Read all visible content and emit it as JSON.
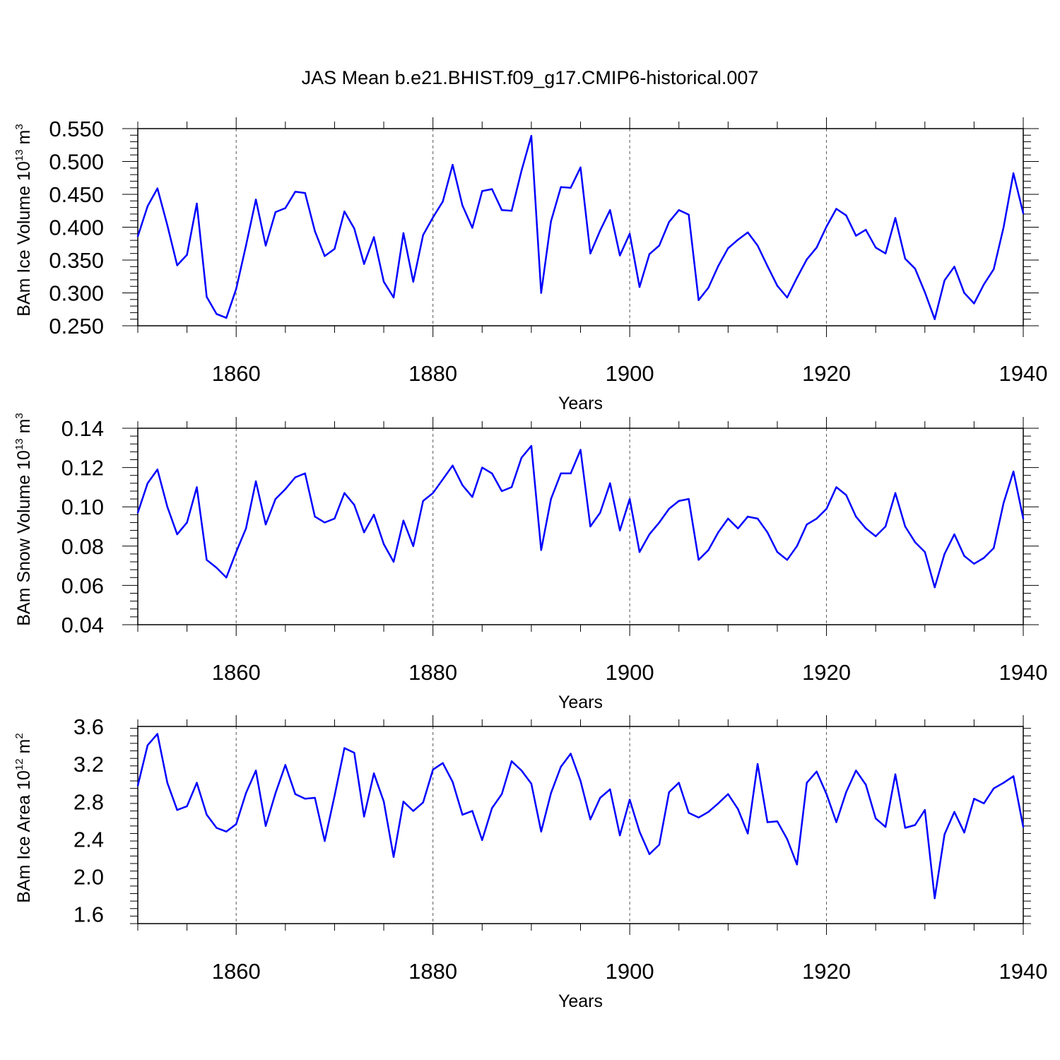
{
  "title": "JAS Mean b.e21.BHIST.f09_g17.CMIP6-historical.007",
  "chart_data": [
    {
      "type": "line",
      "title": "",
      "xlabel": "Years",
      "ylabel": "BAm Ice Volume 10",
      "ylabel_exp": "13",
      "ylabel_unit": " m",
      "ylabel_unit_exp": "3",
      "xlim": [
        1850,
        1940
      ],
      "ylim": [
        0.25,
        0.55
      ],
      "xticks": [
        "1860",
        "1880",
        "1900",
        "1920",
        "1940"
      ],
      "yticks": [
        "0.250",
        "0.300",
        "0.350",
        "0.400",
        "0.450",
        "0.500",
        "0.550"
      ],
      "grid_x": [
        1860,
        1880,
        1900,
        1920
      ],
      "line_color": "#0000ff",
      "x_start": 1850,
      "values": [
        0.386,
        0.432,
        0.459,
        0.403,
        0.342,
        0.358,
        0.436,
        0.294,
        0.268,
        0.262,
        0.306,
        0.372,
        0.442,
        0.372,
        0.423,
        0.429,
        0.454,
        0.452,
        0.394,
        0.356,
        0.367,
        0.424,
        0.398,
        0.344,
        0.385,
        0.317,
        0.293,
        0.391,
        0.317,
        0.388,
        0.415,
        0.439,
        0.495,
        0.433,
        0.399,
        0.455,
        0.458,
        0.426,
        0.425,
        0.486,
        0.539,
        0.3,
        0.409,
        0.461,
        0.46,
        0.491,
        0.36,
        0.395,
        0.426,
        0.357,
        0.39,
        0.309,
        0.359,
        0.372,
        0.408,
        0.426,
        0.419,
        0.289,
        0.308,
        0.341,
        0.368,
        0.381,
        0.392,
        0.372,
        0.341,
        0.311,
        0.293,
        0.323,
        0.351,
        0.369,
        0.401,
        0.428,
        0.418,
        0.387,
        0.396,
        0.369,
        0.36,
        0.414,
        0.352,
        0.337,
        0.301,
        0.26,
        0.319,
        0.34,
        0.3,
        0.284,
        0.313,
        0.336,
        0.4,
        0.482,
        0.421
      ]
    },
    {
      "type": "line",
      "title": "",
      "xlabel": "Years",
      "ylabel": "BAm Snow Volume 10",
      "ylabel_exp": "13",
      "ylabel_unit": " m",
      "ylabel_unit_exp": "3",
      "xlim": [
        1850,
        1940
      ],
      "ylim": [
        0.04,
        0.14
      ],
      "xticks": [
        "1860",
        "1880",
        "1900",
        "1920",
        "1940"
      ],
      "yticks": [
        "0.04",
        "0.06",
        "0.08",
        "0.10",
        "0.12",
        "0.14"
      ],
      "grid_x": [
        1860,
        1880,
        1900,
        1920
      ],
      "line_color": "#0000ff",
      "x_start": 1850,
      "values": [
        0.097,
        0.112,
        0.119,
        0.1,
        0.086,
        0.092,
        0.11,
        0.073,
        0.069,
        0.064,
        0.077,
        0.089,
        0.113,
        0.091,
        0.104,
        0.109,
        0.115,
        0.117,
        0.095,
        0.092,
        0.094,
        0.107,
        0.101,
        0.087,
        0.096,
        0.081,
        0.072,
        0.093,
        0.08,
        0.103,
        0.107,
        0.114,
        0.121,
        0.111,
        0.105,
        0.12,
        0.117,
        0.108,
        0.11,
        0.125,
        0.131,
        0.078,
        0.104,
        0.117,
        0.117,
        0.129,
        0.09,
        0.097,
        0.112,
        0.088,
        0.104,
        0.077,
        0.086,
        0.092,
        0.099,
        0.103,
        0.104,
        0.073,
        0.078,
        0.087,
        0.094,
        0.089,
        0.095,
        0.094,
        0.087,
        0.077,
        0.073,
        0.08,
        0.091,
        0.094,
        0.099,
        0.11,
        0.106,
        0.095,
        0.089,
        0.085,
        0.09,
        0.107,
        0.09,
        0.082,
        0.077,
        0.059,
        0.076,
        0.086,
        0.075,
        0.071,
        0.074,
        0.079,
        0.102,
        0.118,
        0.094
      ]
    },
    {
      "type": "line",
      "title": "",
      "xlabel": "Years",
      "ylabel": "BAm Ice Area 10",
      "ylabel_exp": "12",
      "ylabel_unit": " m",
      "ylabel_unit_exp": "2",
      "xlim": [
        1850,
        1940
      ],
      "ylim": [
        1.5,
        3.6
      ],
      "xticks": [
        "1860",
        "1880",
        "1900",
        "1920",
        "1940"
      ],
      "yticks": [
        "1.6",
        "2.0",
        "2.4",
        "2.8",
        "3.2",
        "3.6"
      ],
      "grid_x": [
        1860,
        1880,
        1900,
        1920
      ],
      "line_color": "#0000ff",
      "x_start": 1850,
      "values": [
        2.97,
        3.4,
        3.52,
        3.0,
        2.71,
        2.75,
        3.0,
        2.66,
        2.52,
        2.48,
        2.56,
        2.89,
        3.13,
        2.54,
        2.89,
        3.19,
        2.88,
        2.83,
        2.84,
        2.38,
        2.86,
        3.37,
        3.32,
        2.64,
        3.1,
        2.8,
        2.21,
        2.8,
        2.7,
        2.79,
        3.14,
        3.21,
        3.01,
        2.66,
        2.7,
        2.39,
        2.73,
        2.88,
        3.23,
        3.13,
        2.99,
        2.48,
        2.89,
        3.17,
        3.31,
        3.02,
        2.61,
        2.84,
        2.93,
        2.44,
        2.82,
        2.48,
        2.24,
        2.34,
        2.9,
        3.0,
        2.68,
        2.63,
        2.69,
        2.78,
        2.88,
        2.72,
        2.46,
        3.2,
        2.58,
        2.59,
        2.4,
        2.13,
        3.0,
        3.12,
        2.88,
        2.58,
        2.9,
        3.13,
        2.98,
        2.62,
        2.53,
        3.09,
        2.52,
        2.55,
        2.71,
        1.77,
        2.45,
        2.69,
        2.47,
        2.83,
        2.78,
        2.94,
        3.0,
        3.07,
        2.53
      ]
    }
  ]
}
